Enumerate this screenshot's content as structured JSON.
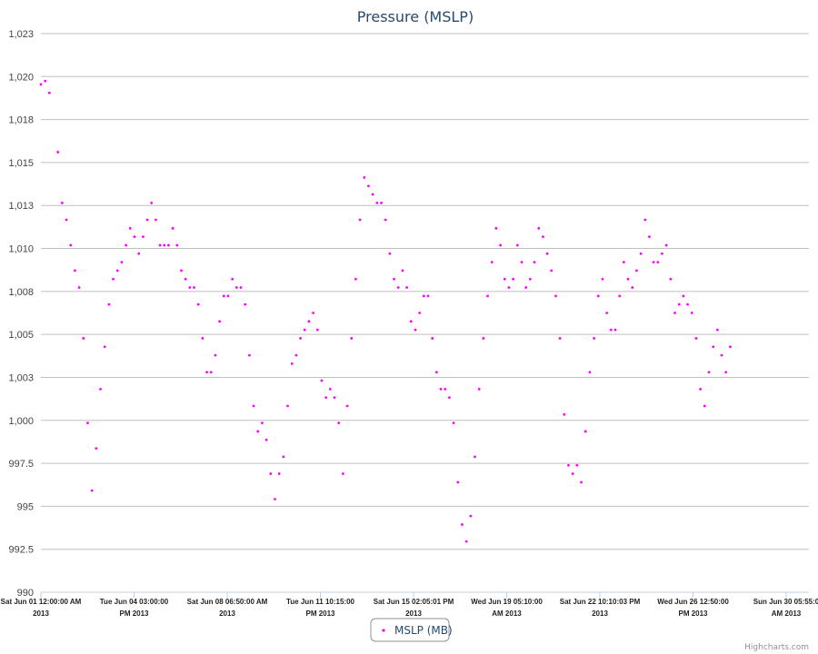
{
  "chart_data": {
    "type": "scatter",
    "title": "Pressure (MSLP)",
    "xlabel": "",
    "ylabel": "",
    "ylim": [
      990,
      1023
    ],
    "y_ticks": [
      "990",
      "992.5",
      "995",
      "997.5",
      "1,000",
      "1,003",
      "1,005",
      "1,008",
      "1,010",
      "1,013",
      "1,015",
      "1,018",
      "1,020",
      "1,023"
    ],
    "x_range": [
      "2013-06-01 12:00",
      "2013-07-01 14:00"
    ],
    "x_ticks": [
      {
        "line1": "Sat Jun 01 12:00:00 AM",
        "line2": "2013"
      },
      {
        "line1": "Tue Jun 04 03:00:00",
        "line2": "PM 2013"
      },
      {
        "line1": "Sat Jun 08 06:50:00 AM",
        "line2": "2013"
      },
      {
        "line1": "Tue Jun 11 10:15:00",
        "line2": "PM 2013"
      },
      {
        "line1": "Sat Jun 15 02:05:01 PM",
        "line2": "2013"
      },
      {
        "line1": "Wed Jun 19 05:10:00",
        "line2": "AM 2013"
      },
      {
        "line1": "Sat Jun 22 10:10:03 PM",
        "line2": "2013"
      },
      {
        "line1": "Wed Jun 26 12:50:00",
        "line2": "PM 2013"
      },
      {
        "line1": "Sun Jun 30 05:55:0",
        "line2": "AM 2013"
      }
    ],
    "grid": true,
    "legend_position": "bottom-center",
    "series": [
      {
        "name": "MSLP (MB)",
        "color": "#ff00ff",
        "points": [
          [
            "2013-06-01 12:00",
            1020.0
          ],
          [
            "2013-06-01 16:00",
            1020.2
          ],
          [
            "2013-06-01 20:00",
            1019.5
          ],
          [
            "2013-06-02 04:00",
            1016.0
          ],
          [
            "2013-06-02 08:00",
            1013.0
          ],
          [
            "2013-06-02 12:00",
            1012.0
          ],
          [
            "2013-06-02 16:00",
            1010.5
          ],
          [
            "2013-06-02 20:00",
            1009.0
          ],
          [
            "2013-06-03 00:00",
            1008.0
          ],
          [
            "2013-06-03 04:00",
            1005.0
          ],
          [
            "2013-06-03 08:00",
            1000.0
          ],
          [
            "2013-06-03 12:00",
            996.0
          ],
          [
            "2013-06-03 16:00",
            998.5
          ],
          [
            "2013-06-03 20:00",
            1002.0
          ],
          [
            "2013-06-04 00:00",
            1004.5
          ],
          [
            "2013-06-04 04:00",
            1007.0
          ],
          [
            "2013-06-04 08:00",
            1008.5
          ],
          [
            "2013-06-04 12:00",
            1009.0
          ],
          [
            "2013-06-04 16:00",
            1009.5
          ],
          [
            "2013-06-04 20:00",
            1010.5
          ],
          [
            "2013-06-05 00:00",
            1011.5
          ],
          [
            "2013-06-05 04:00",
            1011.0
          ],
          [
            "2013-06-05 08:00",
            1010.0
          ],
          [
            "2013-06-05 12:00",
            1011.0
          ],
          [
            "2013-06-05 16:00",
            1012.0
          ],
          [
            "2013-06-05 20:00",
            1013.0
          ],
          [
            "2013-06-06 00:00",
            1012.0
          ],
          [
            "2013-06-06 04:00",
            1010.5
          ],
          [
            "2013-06-06 08:00",
            1010.5
          ],
          [
            "2013-06-06 12:00",
            1010.5
          ],
          [
            "2013-06-06 16:00",
            1011.5
          ],
          [
            "2013-06-06 20:00",
            1010.5
          ],
          [
            "2013-06-07 00:00",
            1009.0
          ],
          [
            "2013-06-07 04:00",
            1008.5
          ],
          [
            "2013-06-07 08:00",
            1008.0
          ],
          [
            "2013-06-07 12:00",
            1008.0
          ],
          [
            "2013-06-07 16:00",
            1007.0
          ],
          [
            "2013-06-07 20:00",
            1005.0
          ],
          [
            "2013-06-08 00:00",
            1003.0
          ],
          [
            "2013-06-08 04:00",
            1003.0
          ],
          [
            "2013-06-08 08:00",
            1004.0
          ],
          [
            "2013-06-08 12:00",
            1006.0
          ],
          [
            "2013-06-08 16:00",
            1007.5
          ],
          [
            "2013-06-08 20:00",
            1007.5
          ],
          [
            "2013-06-09 00:00",
            1008.5
          ],
          [
            "2013-06-09 04:00",
            1008.0
          ],
          [
            "2013-06-09 08:00",
            1008.0
          ],
          [
            "2013-06-09 12:00",
            1007.0
          ],
          [
            "2013-06-09 16:00",
            1004.0
          ],
          [
            "2013-06-09 20:00",
            1001.0
          ],
          [
            "2013-06-10 00:00",
            999.5
          ],
          [
            "2013-06-10 04:00",
            1000.0
          ],
          [
            "2013-06-10 08:00",
            999.0
          ],
          [
            "2013-06-10 12:00",
            997.0
          ],
          [
            "2013-06-10 16:00",
            995.5
          ],
          [
            "2013-06-10 20:00",
            997.0
          ],
          [
            "2013-06-11 00:00",
            998.0
          ],
          [
            "2013-06-11 04:00",
            1001.0
          ],
          [
            "2013-06-11 08:00",
            1003.5
          ],
          [
            "2013-06-11 12:00",
            1004.0
          ],
          [
            "2013-06-11 16:00",
            1005.0
          ],
          [
            "2013-06-11 20:00",
            1005.5
          ],
          [
            "2013-06-12 00:00",
            1006.0
          ],
          [
            "2013-06-12 04:00",
            1006.5
          ],
          [
            "2013-06-12 08:00",
            1005.5
          ],
          [
            "2013-06-12 12:00",
            1002.5
          ],
          [
            "2013-06-12 16:00",
            1001.5
          ],
          [
            "2013-06-12 20:00",
            1002.0
          ],
          [
            "2013-06-13 00:00",
            1001.5
          ],
          [
            "2013-06-13 04:00",
            1000.0
          ],
          [
            "2013-06-13 08:00",
            997.0
          ],
          [
            "2013-06-13 12:00",
            1001.0
          ],
          [
            "2013-06-13 16:00",
            1005.0
          ],
          [
            "2013-06-13 20:00",
            1008.5
          ],
          [
            "2013-06-14 00:00",
            1012.0
          ],
          [
            "2013-06-14 04:00",
            1014.5
          ],
          [
            "2013-06-14 08:00",
            1014.0
          ],
          [
            "2013-06-14 12:00",
            1013.5
          ],
          [
            "2013-06-14 16:00",
            1013.0
          ],
          [
            "2013-06-14 20:00",
            1013.0
          ],
          [
            "2013-06-15 00:00",
            1012.0
          ],
          [
            "2013-06-15 04:00",
            1010.0
          ],
          [
            "2013-06-15 08:00",
            1008.5
          ],
          [
            "2013-06-15 12:00",
            1008.0
          ],
          [
            "2013-06-15 16:00",
            1009.0
          ],
          [
            "2013-06-15 20:00",
            1008.0
          ],
          [
            "2013-06-16 00:00",
            1006.0
          ],
          [
            "2013-06-16 04:00",
            1005.5
          ],
          [
            "2013-06-16 08:00",
            1006.5
          ],
          [
            "2013-06-16 12:00",
            1007.5
          ],
          [
            "2013-06-16 16:00",
            1007.5
          ],
          [
            "2013-06-16 20:00",
            1005.0
          ],
          [
            "2013-06-17 00:00",
            1003.0
          ],
          [
            "2013-06-17 04:00",
            1002.0
          ],
          [
            "2013-06-17 08:00",
            1002.0
          ],
          [
            "2013-06-17 12:00",
            1001.5
          ],
          [
            "2013-06-17 16:00",
            1000.0
          ],
          [
            "2013-06-17 20:00",
            996.5
          ],
          [
            "2013-06-18 00:00",
            994.0
          ],
          [
            "2013-06-18 04:00",
            993.0
          ],
          [
            "2013-06-18 08:00",
            994.5
          ],
          [
            "2013-06-18 12:00",
            998.0
          ],
          [
            "2013-06-18 16:00",
            1002.0
          ],
          [
            "2013-06-18 20:00",
            1005.0
          ],
          [
            "2013-06-19 00:00",
            1007.5
          ],
          [
            "2013-06-19 04:00",
            1009.5
          ],
          [
            "2013-06-19 08:00",
            1011.5
          ],
          [
            "2013-06-19 12:00",
            1010.5
          ],
          [
            "2013-06-19 16:00",
            1008.5
          ],
          [
            "2013-06-19 20:00",
            1008.0
          ],
          [
            "2013-06-20 00:00",
            1008.5
          ],
          [
            "2013-06-20 04:00",
            1010.5
          ],
          [
            "2013-06-20 08:00",
            1009.5
          ],
          [
            "2013-06-20 12:00",
            1008.0
          ],
          [
            "2013-06-20 16:00",
            1008.5
          ],
          [
            "2013-06-20 20:00",
            1009.5
          ],
          [
            "2013-06-21 00:00",
            1011.5
          ],
          [
            "2013-06-21 04:00",
            1011.0
          ],
          [
            "2013-06-21 08:00",
            1010.0
          ],
          [
            "2013-06-21 12:00",
            1009.0
          ],
          [
            "2013-06-21 16:00",
            1007.5
          ],
          [
            "2013-06-21 20:00",
            1005.0
          ],
          [
            "2013-06-22 00:00",
            1000.5
          ],
          [
            "2013-06-22 04:00",
            997.5
          ],
          [
            "2013-06-22 08:00",
            997.0
          ],
          [
            "2013-06-22 12:00",
            997.5
          ],
          [
            "2013-06-22 16:00",
            996.5
          ],
          [
            "2013-06-22 20:00",
            999.5
          ],
          [
            "2013-06-23 00:00",
            1003.0
          ],
          [
            "2013-06-23 04:00",
            1005.0
          ],
          [
            "2013-06-23 08:00",
            1007.5
          ],
          [
            "2013-06-23 12:00",
            1008.5
          ],
          [
            "2013-06-23 16:00",
            1006.5
          ],
          [
            "2013-06-23 20:00",
            1005.5
          ],
          [
            "2013-06-24 00:00",
            1005.5
          ],
          [
            "2013-06-24 04:00",
            1007.5
          ],
          [
            "2013-06-24 08:00",
            1009.5
          ],
          [
            "2013-06-24 12:00",
            1008.5
          ],
          [
            "2013-06-24 16:00",
            1008.0
          ],
          [
            "2013-06-24 20:00",
            1009.0
          ],
          [
            "2013-06-25 00:00",
            1010.0
          ],
          [
            "2013-06-25 04:00",
            1012.0
          ],
          [
            "2013-06-25 08:00",
            1011.0
          ],
          [
            "2013-06-25 12:00",
            1009.5
          ],
          [
            "2013-06-25 16:00",
            1009.5
          ],
          [
            "2013-06-25 20:00",
            1010.0
          ],
          [
            "2013-06-26 00:00",
            1010.5
          ],
          [
            "2013-06-26 04:00",
            1008.5
          ],
          [
            "2013-06-26 08:00",
            1006.5
          ],
          [
            "2013-06-26 12:00",
            1007.0
          ],
          [
            "2013-06-26 16:00",
            1007.5
          ],
          [
            "2013-06-26 20:00",
            1007.0
          ],
          [
            "2013-06-27 00:00",
            1006.5
          ],
          [
            "2013-06-27 04:00",
            1005.0
          ],
          [
            "2013-06-27 08:00",
            1002.0
          ],
          [
            "2013-06-27 12:00",
            1001.0
          ],
          [
            "2013-06-27 16:00",
            1003.0
          ],
          [
            "2013-06-27 20:00",
            1004.5
          ],
          [
            "2013-06-28 00:00",
            1005.5
          ],
          [
            "2013-06-28 04:00",
            1004.0
          ],
          [
            "2013-06-28 08:00",
            1003.0
          ],
          [
            "2013-06-28 12:00",
            1004.5
          ]
        ]
      }
    ]
  },
  "credits": "Highcharts.com"
}
